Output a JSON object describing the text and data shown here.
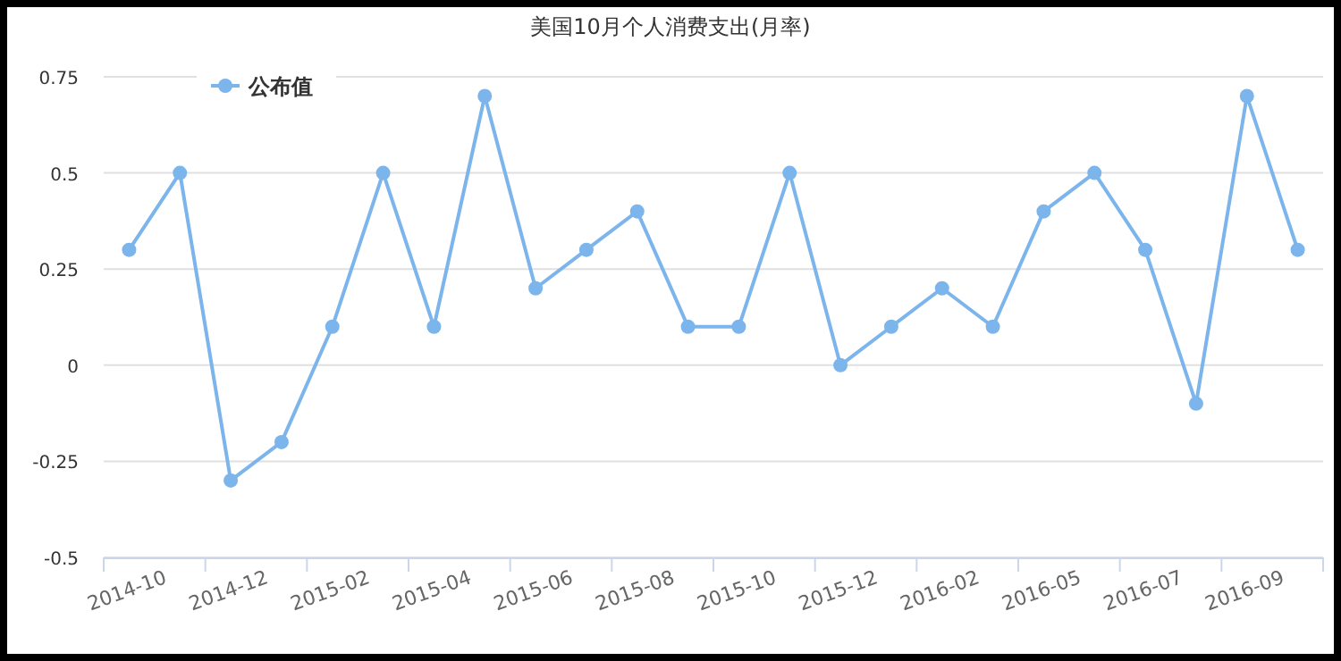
{
  "chart_data": {
    "type": "line",
    "title": "美国10月个人消费支出(月率)",
    "categories": [
      "2014-10",
      null,
      "2014-12",
      null,
      "2015-02",
      null,
      "2015-04",
      null,
      "2015-06",
      null,
      "2015-08",
      null,
      "2015-10",
      null,
      "2015-12",
      null,
      "2016-02",
      null,
      "2016-05",
      null,
      "2016-07",
      null,
      "2016-09",
      null
    ],
    "series": [
      {
        "name": "公布值",
        "color": "#7cb5ec",
        "values": [
          0.3,
          0.5,
          -0.3,
          -0.2,
          0.1,
          0.5,
          0.1,
          0.7,
          0.2,
          0.3,
          0.4,
          0.1,
          0.1,
          0.5,
          0,
          0.1,
          0.2,
          0.1,
          0.4,
          0.5,
          0.3,
          -0.1,
          0.7,
          0.3
        ]
      }
    ],
    "ylim": [
      -0.5,
      0.75
    ],
    "yticks": [
      -0.5,
      -0.25,
      0,
      0.25,
      0.5,
      0.75
    ],
    "grid": "y",
    "legend": "top left",
    "marker": "circle",
    "line_style": "solid"
  }
}
